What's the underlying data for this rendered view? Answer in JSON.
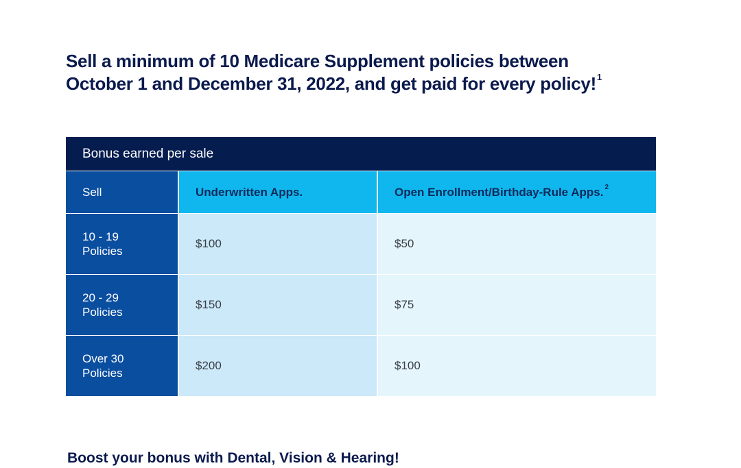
{
  "headline": {
    "line1": "Sell a minimum of 10 Medicare Supplement policies between",
    "line2": "October 1 and December 31, 2022, and get paid for every policy!",
    "footnote": "1"
  },
  "table": {
    "title": "Bonus earned per sale",
    "headers": {
      "sell": "Sell",
      "underwritten": "Underwritten Apps.",
      "open_enrollment": "Open Enrollment/Birthday-Rule Apps.",
      "open_enrollment_footnote": "2"
    },
    "rows": [
      {
        "range": "10 - 19",
        "unit": "Policies",
        "underwritten": "$100",
        "open_enrollment": "$50"
      },
      {
        "range": "20 - 29",
        "unit": "Policies",
        "underwritten": "$150",
        "open_enrollment": "$75"
      },
      {
        "range": "Over 30",
        "unit": "Policies",
        "underwritten": "$200",
        "open_enrollment": "$100"
      }
    ]
  },
  "subheading": "Boost your bonus with Dental, Vision & Hearing!",
  "colors": {
    "navy": "#051c4f",
    "royal_blue": "#0a4ea0",
    "cyan": "#10b7ee",
    "light_blue": "#cbe9f8",
    "pale_blue": "#e5f5fc",
    "headline_text": "#0b1a4d"
  }
}
